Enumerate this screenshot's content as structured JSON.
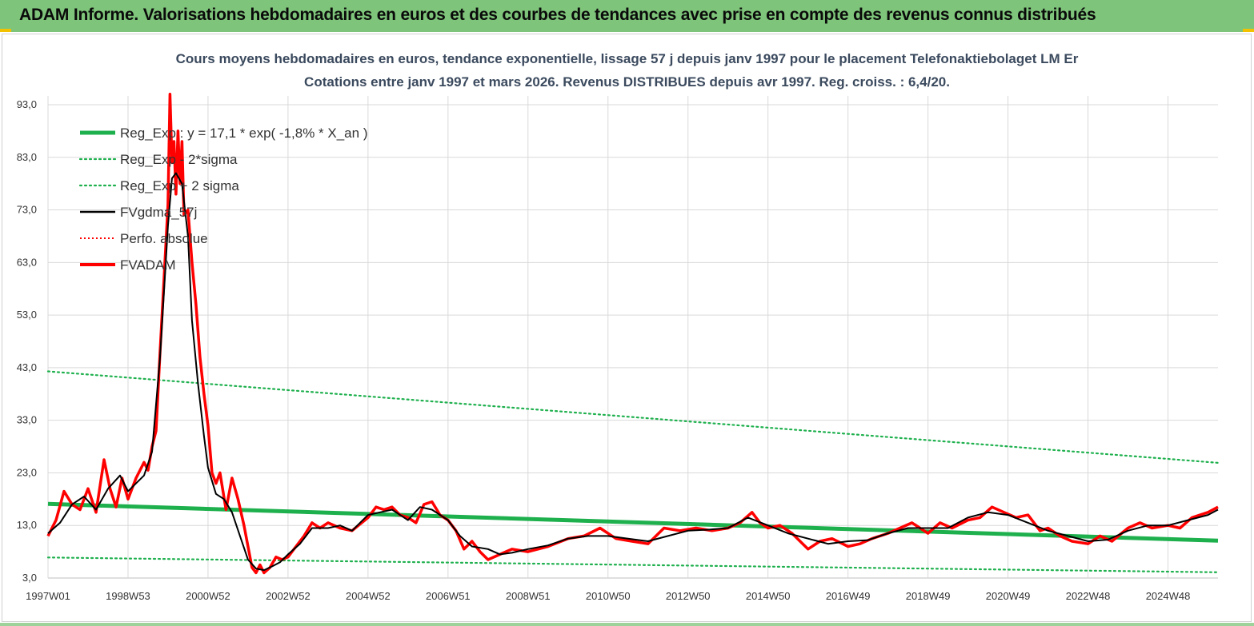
{
  "banner": {
    "title": "ADAM Informe. Valorisations hebdomadaires en euros et des courbes de tendances avec prise en compte des revenus connus distribués"
  },
  "colors": {
    "banner_bg": "#7ec47a",
    "reg_exp": "#1fb04e",
    "sigma": "#1fb04e",
    "fvgdma": "#000000",
    "perfo": "#ff0000",
    "fvadam": "#ff0000",
    "grid": "#d9d9d9"
  },
  "chart_data": {
    "type": "line",
    "title": "Cours moyens hebdomadaires en euros, tendance exponentielle, lissage 57 j depuis janv 1997  pour le placement Telefonaktiebolaget LM Er",
    "subtitle": "Cotations entre janv 1997  et mars 2026. Revenus  DISTRIBUES depuis avr 1997. Reg. croiss. : 6,4/20.",
    "xlabel": "",
    "ylabel": "",
    "ylim": [
      3,
      95
    ],
    "yticks": [
      "3,0",
      "13,0",
      "23,0",
      "33,0",
      "43,0",
      "53,0",
      "63,0",
      "73,0",
      "83,0",
      "93,0"
    ],
    "ytick_values": [
      3,
      13,
      23,
      33,
      43,
      53,
      63,
      73,
      83,
      93
    ],
    "xlim": [
      1997.0,
      2026.25
    ],
    "xticks": [
      "1997W01",
      "1998W53",
      "2000W52",
      "2002W52",
      "2004W52",
      "2006W51",
      "2008W51",
      "2010W50",
      "2012W50",
      "2014W50",
      "2016W49",
      "2018W49",
      "2020W49",
      "2022W48",
      "2024W48"
    ],
    "xtick_values": [
      1997.0,
      1999.0,
      2001.0,
      2003.0,
      2005.0,
      2007.0,
      2009.0,
      2011.0,
      2013.0,
      2015.0,
      2017.0,
      2019.0,
      2021.0,
      2023.0,
      2025.0
    ],
    "grid": true,
    "legend_position": "top-left",
    "legend": [
      {
        "key": "reg_exp",
        "label": "Reg_Exp : y = 17,1 * exp( -1,8% *  X_an )",
        "style": "thick"
      },
      {
        "key": "sigma_plus",
        "label": "Reg_Exp - 2*sigma",
        "style": "dotted-green"
      },
      {
        "key": "sigma_minus",
        "label": "Reg_Exp + 2 sigma",
        "style": "dotted-green"
      },
      {
        "key": "fvgdma",
        "label": "FVgdma_57j",
        "style": "black"
      },
      {
        "key": "perfo",
        "label": "Perfo. absolue",
        "style": "dotted-red"
      },
      {
        "key": "fvadam",
        "label": "FVADAM",
        "style": "red"
      }
    ],
    "series": [
      {
        "key": "reg_exp",
        "x": [
          1997.0,
          2026.25
        ],
        "y": [
          17.1,
          10.1
        ]
      },
      {
        "key": "sigma_plus",
        "x": [
          1997.0,
          2026.25
        ],
        "y": [
          42.3,
          24.9
        ]
      },
      {
        "key": "sigma_minus",
        "x": [
          1997.0,
          2026.25
        ],
        "y": [
          6.9,
          4.1
        ]
      },
      {
        "key": "fvgdma",
        "x": [
          1997.0,
          1997.3,
          1997.6,
          1997.9,
          1998.2,
          1998.5,
          1998.8,
          1999.0,
          1999.2,
          1999.4,
          1999.6,
          1999.8,
          2000.0,
          2000.1,
          2000.2,
          2000.35,
          2000.5,
          2000.6,
          2000.75,
          2000.9,
          2001.0,
          2001.2,
          2001.4,
          2001.6,
          2001.8,
          2002.0,
          2002.2,
          2002.4,
          2002.6,
          2002.8,
          2003.0,
          2003.3,
          2003.6,
          2004.0,
          2004.3,
          2004.6,
          2005.0,
          2005.3,
          2005.6,
          2006.0,
          2006.3,
          2006.6,
          2007.0,
          2007.3,
          2007.6,
          2008.0,
          2008.3,
          2008.6,
          2009.0,
          2009.5,
          2010.0,
          2010.5,
          2011.0,
          2011.5,
          2012.0,
          2012.5,
          2013.0,
          2013.5,
          2014.0,
          2014.5,
          2015.0,
          2015.5,
          2016.0,
          2016.5,
          2017.0,
          2017.5,
          2018.0,
          2018.5,
          2019.0,
          2019.5,
          2020.0,
          2020.5,
          2021.0,
          2021.5,
          2022.0,
          2022.5,
          2023.0,
          2023.5,
          2024.0,
          2024.5,
          2025.0,
          2025.5,
          2026.0,
          2026.25
        ],
        "y": [
          11.5,
          13.5,
          17.0,
          18.5,
          16.0,
          20.0,
          22.5,
          19.5,
          21.0,
          22.5,
          27.0,
          45.0,
          70.0,
          79.0,
          80.0,
          78.0,
          68.0,
          52.0,
          40.0,
          30.0,
          24.0,
          19.0,
          18.0,
          15.5,
          11.0,
          6.5,
          4.8,
          4.5,
          5.2,
          6.0,
          7.5,
          9.5,
          12.5,
          12.5,
          13.0,
          12.0,
          15.0,
          15.5,
          16.0,
          14.0,
          16.5,
          16.0,
          14.0,
          11.0,
          9.0,
          8.5,
          7.5,
          7.8,
          8.5,
          9.2,
          10.5,
          11.0,
          11.0,
          10.5,
          10.0,
          11.0,
          12.0,
          12.2,
          12.5,
          14.5,
          13.0,
          11.5,
          10.5,
          9.5,
          10.0,
          10.2,
          11.5,
          12.5,
          12.5,
          12.5,
          14.5,
          15.5,
          15.0,
          13.5,
          12.0,
          11.0,
          10.0,
          10.3,
          12.0,
          13.0,
          13.0,
          14.0,
          15.0,
          16.0
        ]
      },
      {
        "key": "fvadam",
        "x": [
          1997.0,
          1997.2,
          1997.4,
          1997.6,
          1997.8,
          1998.0,
          1998.2,
          1998.4,
          1998.55,
          1998.7,
          1998.85,
          1999.0,
          1999.2,
          1999.4,
          1999.5,
          1999.6,
          1999.7,
          1999.8,
          1999.9,
          2000.0,
          2000.05,
          2000.1,
          2000.15,
          2000.2,
          2000.25,
          2000.3,
          2000.35,
          2000.4,
          2000.5,
          2000.6,
          2000.7,
          2000.8,
          2000.9,
          2001.0,
          2001.1,
          2001.2,
          2001.3,
          2001.45,
          2001.6,
          2001.75,
          2001.9,
          2002.0,
          2002.1,
          2002.2,
          2002.3,
          2002.4,
          2002.55,
          2002.7,
          2002.85,
          2003.0,
          2003.2,
          2003.4,
          2003.6,
          2003.8,
          2004.0,
          2004.3,
          2004.6,
          2005.0,
          2005.2,
          2005.4,
          2005.6,
          2005.8,
          2006.0,
          2006.2,
          2006.4,
          2006.6,
          2006.8,
          2007.0,
          2007.2,
          2007.4,
          2007.6,
          2007.8,
          2008.0,
          2008.3,
          2008.6,
          2009.0,
          2009.5,
          2010.0,
          2010.4,
          2010.8,
          2011.2,
          2011.6,
          2012.0,
          2012.4,
          2012.8,
          2013.2,
          2013.6,
          2014.0,
          2014.3,
          2014.6,
          2014.8,
          2015.0,
          2015.3,
          2015.6,
          2016.0,
          2016.3,
          2016.6,
          2017.0,
          2017.3,
          2017.6,
          2018.0,
          2018.3,
          2018.6,
          2019.0,
          2019.3,
          2019.6,
          2020.0,
          2020.3,
          2020.6,
          2020.9,
          2021.2,
          2021.5,
          2021.8,
          2022.0,
          2022.3,
          2022.6,
          2023.0,
          2023.3,
          2023.6,
          2024.0,
          2024.3,
          2024.6,
          2025.0,
          2025.3,
          2025.6,
          2026.0,
          2026.25
        ],
        "y": [
          11.0,
          14.0,
          19.5,
          17.0,
          16.0,
          20.0,
          15.5,
          25.5,
          20.0,
          16.5,
          22.0,
          18.0,
          22.0,
          25.0,
          23.5,
          28.0,
          31.0,
          46.0,
          60.0,
          74.0,
          95.0,
          82.0,
          86.0,
          76.0,
          88.0,
          78.0,
          86.0,
          72.0,
          73.0,
          63.0,
          55.0,
          45.0,
          38.0,
          32.0,
          23.0,
          21.0,
          23.0,
          16.0,
          22.0,
          18.0,
          13.0,
          9.0,
          5.0,
          4.0,
          5.5,
          4.0,
          5.0,
          7.0,
          6.5,
          7.0,
          9.0,
          11.0,
          13.5,
          12.5,
          13.5,
          12.5,
          12.0,
          14.5,
          16.5,
          16.0,
          16.5,
          15.0,
          14.5,
          13.5,
          17.0,
          17.5,
          15.0,
          14.0,
          12.0,
          8.5,
          10.0,
          8.0,
          6.5,
          7.5,
          8.5,
          8.0,
          9.0,
          10.5,
          11.0,
          12.5,
          10.5,
          10.0,
          9.5,
          12.5,
          12.0,
          12.5,
          12.0,
          12.5,
          13.5,
          15.5,
          13.5,
          12.5,
          13.0,
          11.5,
          8.5,
          10.0,
          10.5,
          9.0,
          9.5,
          10.5,
          11.5,
          12.5,
          13.5,
          11.5,
          13.5,
          12.5,
          14.0,
          14.5,
          16.5,
          15.5,
          14.5,
          15.0,
          12.0,
          12.5,
          11.0,
          10.0,
          9.5,
          11.0,
          10.0,
          12.5,
          13.5,
          12.5,
          13.0,
          12.5,
          14.5,
          15.5,
          16.5
        ]
      }
    ]
  }
}
